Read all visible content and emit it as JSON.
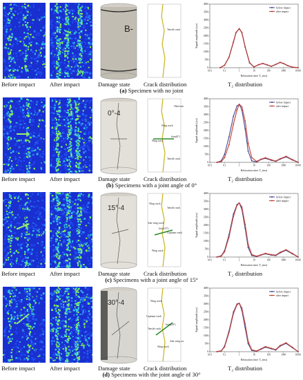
{
  "labels": {
    "before": "Before impact",
    "after": "After impact",
    "damage": "Damage state",
    "crack": "Crack distribution",
    "t2": "T₂ distribution"
  },
  "chart_common": {
    "type": "line",
    "xlabel": "Relaxation time T₂ (ms)",
    "ylabel": "Signal amplitude (a.u)",
    "x_scale": "log",
    "xlim": [
      0.01,
      10000
    ],
    "ylim": [
      0,
      4000
    ],
    "x_ticks": [
      "0.01",
      "0.1",
      "1",
      "10",
      "100",
      "1000",
      "10000"
    ],
    "y_ticks": [
      "0",
      "500",
      "1000",
      "1500",
      "2000",
      "2500",
      "3000",
      "3500",
      "4000"
    ],
    "legend_position": "top-right",
    "series_colors": {
      "before impact": "#3a3a8a",
      "after impact": "#c0392b"
    }
  },
  "rows": [
    {
      "caption_tag": "(a)",
      "caption_text": " Specimen with no joint",
      "specimen_text": "B-",
      "crack_labels": [
        "Tensile crack"
      ],
      "chart_data": {
        "type": "line",
        "series": [
          {
            "name": "before impact",
            "x": [
              0.05,
              0.1,
              0.2,
              0.4,
              0.6,
              1,
              1.5,
              2.5,
              5,
              10,
              20,
              40,
              80,
              150,
              300,
              600,
              1000,
              2000,
              4000,
              10000
            ],
            "y": [
              0,
              150,
              650,
              1600,
              2200,
              2450,
              2200,
              1300,
              300,
              40,
              180,
              260,
              170,
              80,
              200,
              330,
              260,
              120,
              30,
              0
            ]
          },
          {
            "name": "after impact",
            "x": [
              0.05,
              0.1,
              0.2,
              0.4,
              0.6,
              1,
              1.5,
              2.5,
              5,
              10,
              20,
              40,
              80,
              150,
              300,
              600,
              1000,
              2000,
              4000,
              10000
            ],
            "y": [
              0,
              160,
              660,
              1620,
              2220,
              2460,
              2220,
              1320,
              320,
              50,
              190,
              270,
              180,
              90,
              210,
              340,
              270,
              130,
              40,
              0
            ]
          }
        ]
      }
    },
    {
      "caption_tag": "(b)",
      "caption_text": " Specimens with a joint angle of 0°",
      "specimen_text": "0°-4",
      "crack_labels": [
        "Obervation zone",
        "Wing crack",
        "Joint(0°)",
        "Wing crack",
        "Tensile crack"
      ],
      "chart_data": {
        "type": "line",
        "series": [
          {
            "name": "before impact",
            "x": [
              0.03,
              0.06,
              0.1,
              0.2,
              0.4,
              0.7,
              1,
              1.5,
              2.5,
              4,
              7,
              15,
              30,
              60,
              150,
              300,
              600,
              1500,
              4000,
              10000
            ],
            "y": [
              0,
              100,
              500,
              1600,
              2900,
              3550,
              3650,
              3300,
              2100,
              700,
              100,
              20,
              180,
              250,
              130,
              60,
              200,
              340,
              150,
              0
            ]
          },
          {
            "name": "after impact",
            "x": [
              0.03,
              0.06,
              0.1,
              0.2,
              0.4,
              0.7,
              1,
              1.5,
              2.5,
              4,
              7,
              15,
              30,
              60,
              150,
              300,
              600,
              1500,
              4000,
              10000
            ],
            "y": [
              0,
              50,
              300,
              1100,
              2400,
              3300,
              3650,
              3500,
              2600,
              1200,
              300,
              60,
              200,
              290,
              160,
              80,
              230,
              380,
              180,
              0
            ]
          }
        ]
      }
    },
    {
      "caption_tag": "(c)",
      "caption_text": " Specimens with a joint angle of 15°",
      "specimen_text": "15°-4",
      "crack_labels": [
        "Wing crack",
        "Tensile crack",
        "Anti-wing crack",
        "Joint(15°)",
        "Coplanar crack",
        "Wing crack"
      ],
      "chart_data": {
        "type": "line",
        "series": [
          {
            "name": "before impact",
            "x": [
              0.03,
              0.06,
              0.1,
              0.2,
              0.4,
              0.7,
              1,
              1.5,
              2.5,
              4,
              7,
              15,
              30,
              60,
              150,
              300,
              600,
              1500,
              4000,
              10000
            ],
            "y": [
              0,
              80,
              400,
              1400,
              2700,
              3300,
              3400,
              3000,
              1800,
              600,
              100,
              30,
              120,
              200,
              120,
              90,
              260,
              420,
              200,
              0
            ]
          },
          {
            "name": "after impact",
            "x": [
              0.03,
              0.06,
              0.1,
              0.2,
              0.4,
              0.7,
              1,
              1.5,
              2.5,
              4,
              7,
              15,
              30,
              60,
              150,
              300,
              600,
              1500,
              4000,
              10000
            ],
            "y": [
              0,
              60,
              330,
              1250,
              2550,
              3250,
              3400,
              3150,
              2050,
              800,
              160,
              50,
              140,
              230,
              150,
              120,
              300,
              460,
              230,
              0
            ]
          }
        ]
      }
    },
    {
      "caption_tag": "(d)",
      "caption_text": " Specimens with the joint angle of 30°",
      "specimen_text": "30°-4",
      "crack_labels": [
        "Wing crack",
        "Coplanar crack",
        "Tensile crack",
        "Joint(30°)",
        "Anti-wing crack",
        "Wing crack"
      ],
      "chart_data": {
        "type": "line",
        "series": [
          {
            "name": "before impact",
            "x": [
              0.03,
              0.06,
              0.1,
              0.2,
              0.4,
              0.7,
              1,
              1.5,
              2.5,
              4,
              7,
              15,
              30,
              60,
              150,
              300,
              600,
              1500,
              4000,
              10000
            ],
            "y": [
              0,
              60,
              350,
              1300,
              2500,
              3000,
              3050,
              2600,
              1500,
              500,
              80,
              20,
              150,
              280,
              180,
              100,
              350,
              520,
              250,
              0
            ]
          },
          {
            "name": "after impact",
            "x": [
              0.03,
              0.06,
              0.1,
              0.2,
              0.4,
              0.7,
              1,
              1.5,
              2.5,
              4,
              7,
              15,
              30,
              60,
              150,
              300,
              600,
              1500,
              4000,
              10000
            ],
            "y": [
              0,
              50,
              300,
              1200,
              2400,
              2950,
              3050,
              2750,
              1750,
              650,
              120,
              40,
              180,
              320,
              210,
              130,
              390,
              560,
              280,
              0
            ]
          }
        ]
      }
    }
  ]
}
